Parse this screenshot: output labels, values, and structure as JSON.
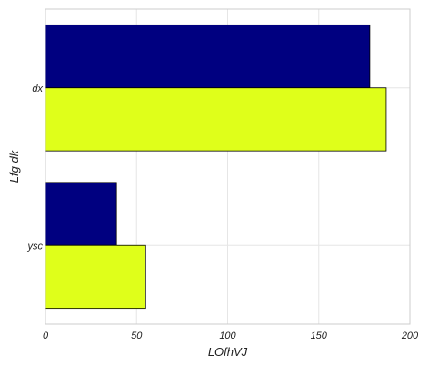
{
  "chart_data": {
    "type": "bar",
    "orientation": "horizontal",
    "categories": [
      "dx",
      "ysc"
    ],
    "series": [
      {
        "values": [
          178,
          39
        ],
        "color": "#000080"
      },
      {
        "values": [
          187,
          55
        ],
        "color": "#dfff1a"
      }
    ],
    "xlabel": "LOfhVJ",
    "ylabel": "Lfg dk",
    "xlim": [
      0,
      200
    ],
    "xticks": [
      0,
      50,
      100,
      150,
      200
    ],
    "grid": true,
    "legend": "none"
  }
}
